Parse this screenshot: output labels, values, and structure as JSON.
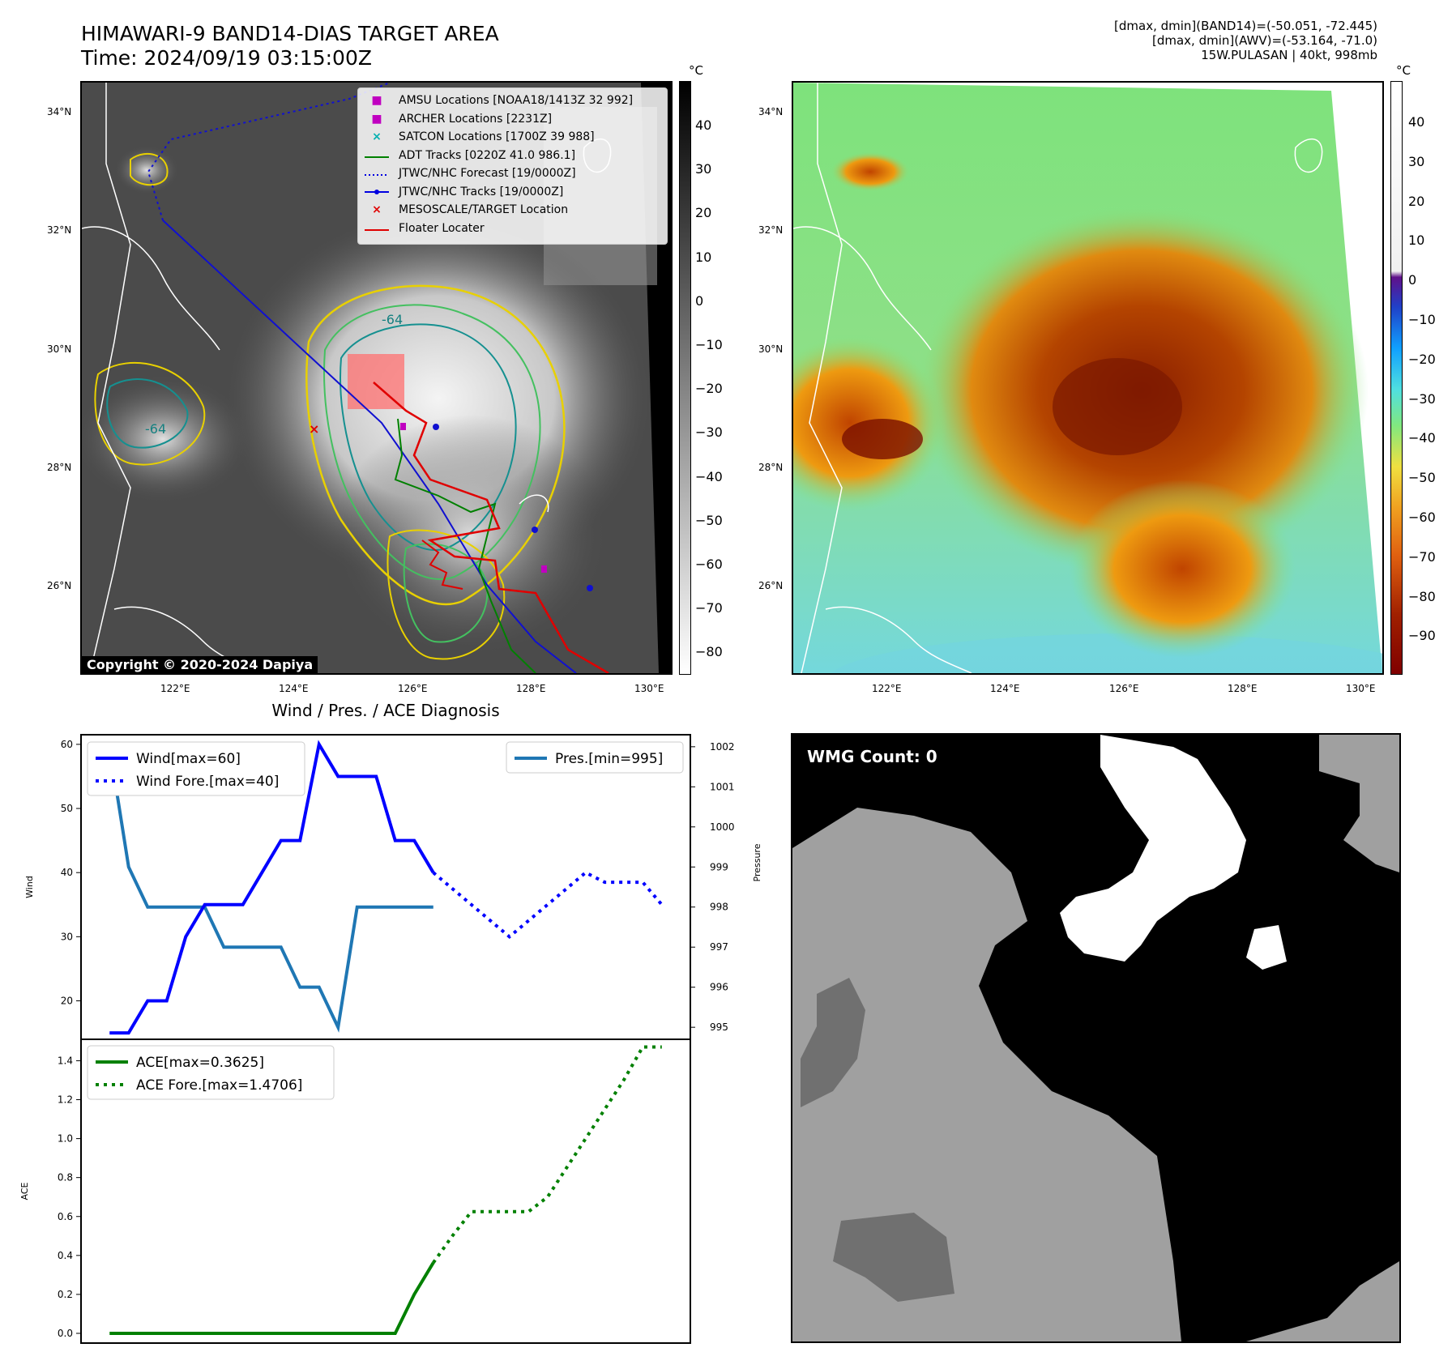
{
  "header": {
    "title_line1": "HIMAWARI-9 BAND14-DIAS TARGET AREA",
    "title_line2": "Time: 2024/09/19 03:15:00Z",
    "info_line1": "[dmax, dmin](BAND14)=(-50.051, -72.445)",
    "info_line2": "[dmax, dmin](AWV)=(-53.164, -71.0)",
    "info_line3": "15W.PULASAN | 40kt, 998mb"
  },
  "map_axes": {
    "lat_labels": [
      "34°N",
      "32°N",
      "30°N",
      "28°N",
      "26°N"
    ],
    "lon_labels": [
      "122°E",
      "124°E",
      "126°E",
      "128°E",
      "130°E"
    ]
  },
  "ir_panel": {
    "legend": [
      {
        "label": "AMSU Locations [NOAA18/1413Z 32 992]",
        "marker": "square",
        "color": "#c000c0"
      },
      {
        "label": "ARCHER Locations [2231Z]",
        "marker": "square",
        "color": "#c000c0"
      },
      {
        "label": "SATCON Locations [1700Z 39 988]",
        "marker": "x",
        "color": "#00b0b0"
      },
      {
        "label": "ADT Tracks [0220Z 41.0 986.1]",
        "marker": "line",
        "color": "#008000"
      },
      {
        "label": "JTWC/NHC Forecast [19/0000Z]",
        "marker": "dotted",
        "color": "#0000e0"
      },
      {
        "label": "JTWC/NHC Tracks [19/0000Z]",
        "marker": "line-dot",
        "color": "#0000e0"
      },
      {
        "label": "MESOSCALE/TARGET Location",
        "marker": "x",
        "color": "#e00000"
      },
      {
        "label": "Floater Locater",
        "marker": "line",
        "color": "#e00000"
      }
    ],
    "contour_label": "-64",
    "copyright": "Copyright © 2020-2024 Dapiya",
    "colorbar_unit": "°C",
    "colorbar_ticks": [
      "40",
      "30",
      "20",
      "10",
      "0",
      "−10",
      "−20",
      "−30",
      "−40",
      "−50",
      "−60",
      "−70",
      "−80"
    ]
  },
  "awv_panel": {
    "colorbar_unit": "°C",
    "colorbar_ticks": [
      "40",
      "30",
      "20",
      "10",
      "0",
      "−10",
      "−20",
      "−30",
      "−40",
      "−50",
      "−60",
      "−70",
      "−80",
      "−90"
    ]
  },
  "wmg_panel": {
    "label": "WMG Count: 0"
  },
  "chart_data": [
    {
      "type": "line",
      "title": "Wind / Pres. / ACE Diagnosis",
      "ylabel": "Wind",
      "ylabel_right": "Pressure",
      "ylim": [
        14,
        61.5
      ],
      "ylim_right": [
        994.7,
        1002.3
      ],
      "yticks": [
        20,
        30,
        40,
        50,
        60
      ],
      "yticks_right": [
        995,
        996,
        997,
        998,
        999,
        1000,
        1001,
        1002
      ],
      "series": [
        {
          "name": "Wind[max=60]",
          "color": "#0000ff",
          "style": "solid",
          "axis": "left",
          "x": [
            0,
            1,
            2,
            3,
            4,
            5,
            6,
            7,
            8,
            9,
            10,
            11,
            12,
            13,
            14,
            15,
            16,
            17
          ],
          "values": [
            15,
            15,
            20,
            20,
            30,
            35,
            35,
            35,
            40,
            45,
            45,
            60,
            55,
            55,
            55,
            45,
            45,
            40
          ]
        },
        {
          "name": "Wind Fore.[max=40]",
          "color": "#0000ff",
          "style": "dotted",
          "axis": "left",
          "x": [
            17,
            18,
            19,
            20,
            21,
            22,
            23,
            24,
            25,
            26,
            27,
            28,
            29
          ],
          "values": [
            40,
            37.5,
            35,
            32.5,
            30,
            32.5,
            35,
            37.5,
            40,
            38.5,
            38.5,
            38.5,
            35
          ]
        },
        {
          "name": "Pres.[min=995]",
          "color": "#1f77b4",
          "style": "solid",
          "axis": "right",
          "x": [
            0,
            1,
            2,
            3,
            4,
            5,
            6,
            7,
            8,
            9,
            10,
            11,
            12,
            13,
            14,
            15,
            16,
            17
          ],
          "values": [
            1002,
            999,
            998,
            998,
            998,
            998,
            997,
            997,
            997,
            997,
            996,
            996,
            995,
            998,
            998,
            998,
            998,
            998
          ]
        }
      ]
    },
    {
      "type": "line",
      "ylabel": "ACE",
      "ylim": [
        -0.05,
        1.51
      ],
      "yticks": [
        0.0,
        0.2,
        0.4,
        0.6,
        0.8,
        1.0,
        1.2,
        1.4
      ],
      "ytick_labels": [
        "0.0",
        "0.2",
        "0.4",
        "0.6",
        "0.8",
        "1.0",
        "1.2",
        "1.4"
      ],
      "series": [
        {
          "name": "ACE[max=0.3625]",
          "color": "#008000",
          "style": "solid",
          "x": [
            0,
            1,
            2,
            3,
            4,
            5,
            6,
            7,
            8,
            9,
            10,
            11,
            12,
            13,
            14,
            15,
            16,
            17
          ],
          "values": [
            0,
            0,
            0,
            0,
            0,
            0,
            0,
            0,
            0,
            0,
            0,
            0,
            0,
            0,
            0,
            0,
            0.2,
            0.3625
          ]
        },
        {
          "name": "ACE Fore.[max=1.4706]",
          "color": "#008000",
          "style": "dotted",
          "x": [
            17,
            18,
            19,
            20,
            21,
            22,
            23,
            24,
            25,
            26,
            27,
            28,
            29
          ],
          "values": [
            0.3625,
            0.5,
            0.625,
            0.625,
            0.625,
            0.625,
            0.7,
            0.85,
            1.0,
            1.15,
            1.3,
            1.4706,
            1.4706
          ]
        }
      ]
    }
  ]
}
